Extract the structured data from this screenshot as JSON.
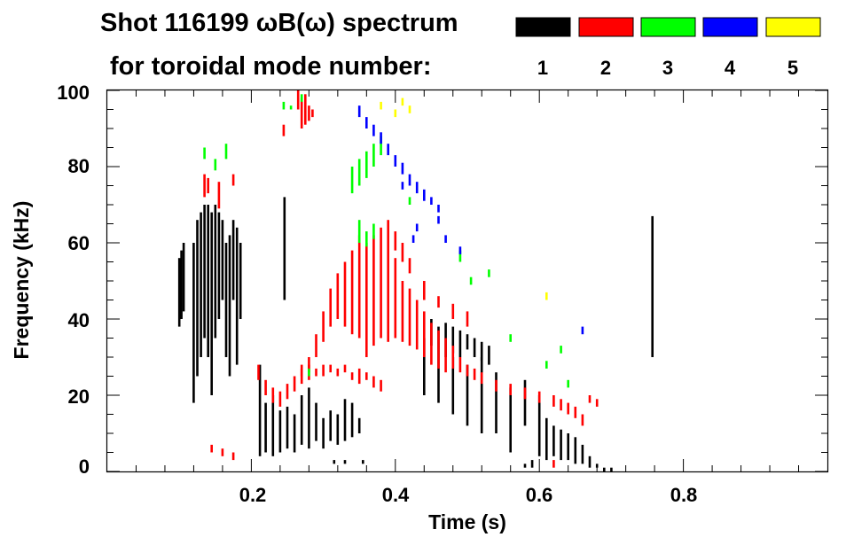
{
  "chart_data": {
    "type": "scatter",
    "title_line1": "Shot 116199 ωB(ω) spectrum",
    "title_line2": "for toroidal mode number:",
    "xlabel": "Time (s)",
    "ylabel": "Frequency (kHz)",
    "xlim": [
      0.0,
      1.0
    ],
    "ylim": [
      0,
      100
    ],
    "xticks": [
      0.2,
      0.4,
      0.6,
      0.8
    ],
    "xtick_labels": [
      "0.2",
      "0.4",
      "0.6",
      "0.8"
    ],
    "yticks": [
      0,
      20,
      40,
      60,
      80,
      100
    ],
    "ytick_labels": [
      "0",
      "20",
      "40",
      "60",
      "80",
      "100"
    ],
    "legend_position": "top-right",
    "legend": [
      {
        "label": "1",
        "color": "#000000"
      },
      {
        "label": "2",
        "color": "#ff0000"
      },
      {
        "label": "3",
        "color": "#00ff00"
      },
      {
        "label": "4",
        "color": "#0000ff"
      },
      {
        "label": "5",
        "color": "#ffff00"
      }
    ],
    "series": [
      {
        "name": "n=1",
        "color": "#000000",
        "points": [
          [
            0.1,
            38,
            56
          ],
          [
            0.103,
            40,
            58
          ],
          [
            0.106,
            42,
            60
          ],
          [
            0.12,
            18,
            60
          ],
          [
            0.125,
            25,
            66
          ],
          [
            0.13,
            30,
            68
          ],
          [
            0.135,
            35,
            70
          ],
          [
            0.14,
            30,
            70
          ],
          [
            0.145,
            20,
            68
          ],
          [
            0.15,
            35,
            70
          ],
          [
            0.155,
            40,
            68
          ],
          [
            0.16,
            45,
            66
          ],
          [
            0.165,
            30,
            60
          ],
          [
            0.17,
            25,
            62
          ],
          [
            0.175,
            45,
            66
          ],
          [
            0.18,
            28,
            64
          ],
          [
            0.185,
            40,
            60
          ],
          [
            0.212,
            4,
            28
          ],
          [
            0.22,
            5,
            18
          ],
          [
            0.23,
            4,
            20
          ],
          [
            0.24,
            5,
            16
          ],
          [
            0.25,
            6,
            17
          ],
          [
            0.26,
            5,
            15
          ],
          [
            0.27,
            7,
            20
          ],
          [
            0.28,
            6,
            22
          ],
          [
            0.29,
            8,
            18
          ],
          [
            0.3,
            6,
            14
          ],
          [
            0.31,
            8,
            16
          ],
          [
            0.32,
            7,
            15
          ],
          [
            0.33,
            8,
            19
          ],
          [
            0.34,
            9,
            18
          ],
          [
            0.35,
            10,
            14
          ],
          [
            0.246,
            45,
            72
          ],
          [
            0.315,
            2,
            3
          ],
          [
            0.33,
            2,
            3
          ],
          [
            0.355,
            2,
            3
          ],
          [
            0.45,
            33,
            40
          ],
          [
            0.46,
            32,
            38
          ],
          [
            0.47,
            30,
            39
          ],
          [
            0.48,
            31,
            38
          ],
          [
            0.49,
            30,
            37
          ],
          [
            0.5,
            32,
            36
          ],
          [
            0.51,
            30,
            35
          ],
          [
            0.52,
            29,
            34
          ],
          [
            0.53,
            28,
            33
          ],
          [
            0.44,
            20,
            35
          ],
          [
            0.46,
            18,
            32
          ],
          [
            0.48,
            15,
            30
          ],
          [
            0.5,
            12,
            28
          ],
          [
            0.52,
            10,
            30
          ],
          [
            0.54,
            10,
            26
          ],
          [
            0.56,
            5,
            22
          ],
          [
            0.58,
            12,
            24
          ],
          [
            0.6,
            4,
            20
          ],
          [
            0.61,
            3,
            14
          ],
          [
            0.62,
            4,
            12
          ],
          [
            0.63,
            3,
            11
          ],
          [
            0.64,
            3,
            10
          ],
          [
            0.65,
            2,
            9
          ],
          [
            0.66,
            2,
            7
          ],
          [
            0.67,
            1,
            4
          ],
          [
            0.68,
            1,
            2
          ],
          [
            0.69,
            0,
            1
          ],
          [
            0.7,
            0,
            1
          ],
          [
            0.58,
            1,
            2
          ],
          [
            0.59,
            1,
            3
          ],
          [
            0.757,
            30,
            67
          ]
        ]
      },
      {
        "name": "n=2",
        "color": "#ff0000",
        "points": [
          [
            0.135,
            72,
            78
          ],
          [
            0.14,
            73,
            77
          ],
          [
            0.155,
            69,
            76
          ],
          [
            0.175,
            75,
            78
          ],
          [
            0.145,
            5,
            7
          ],
          [
            0.16,
            4,
            6
          ],
          [
            0.175,
            3,
            5
          ],
          [
            0.265,
            95,
            100
          ],
          [
            0.27,
            90,
            98
          ],
          [
            0.275,
            91,
            99
          ],
          [
            0.28,
            92,
            96
          ],
          [
            0.285,
            93,
            95
          ],
          [
            0.245,
            88,
            91
          ],
          [
            0.21,
            24,
            28
          ],
          [
            0.22,
            20,
            24
          ],
          [
            0.23,
            18,
            22
          ],
          [
            0.24,
            17,
            21
          ],
          [
            0.25,
            19,
            23
          ],
          [
            0.26,
            21,
            25
          ],
          [
            0.27,
            23,
            27
          ],
          [
            0.28,
            26,
            30
          ],
          [
            0.27,
            25,
            28
          ],
          [
            0.28,
            24,
            28
          ],
          [
            0.29,
            25,
            27
          ],
          [
            0.3,
            25,
            28
          ],
          [
            0.31,
            26,
            28
          ],
          [
            0.32,
            25,
            27
          ],
          [
            0.33,
            26,
            28
          ],
          [
            0.34,
            24,
            26
          ],
          [
            0.35,
            23,
            27
          ],
          [
            0.36,
            24,
            26
          ],
          [
            0.37,
            22,
            25
          ],
          [
            0.38,
            21,
            24
          ],
          [
            0.29,
            30,
            36
          ],
          [
            0.3,
            34,
            42
          ],
          [
            0.31,
            38,
            48
          ],
          [
            0.32,
            40,
            52
          ],
          [
            0.33,
            38,
            55
          ],
          [
            0.34,
            36,
            58
          ],
          [
            0.35,
            35,
            62
          ],
          [
            0.36,
            30,
            60
          ],
          [
            0.37,
            33,
            62
          ],
          [
            0.38,
            35,
            64
          ],
          [
            0.39,
            34,
            60
          ],
          [
            0.4,
            35,
            56
          ],
          [
            0.41,
            34,
            50
          ],
          [
            0.42,
            33,
            48
          ],
          [
            0.43,
            32,
            45
          ],
          [
            0.44,
            30,
            42
          ],
          [
            0.45,
            28,
            39
          ],
          [
            0.46,
            27,
            37
          ],
          [
            0.47,
            26,
            35
          ],
          [
            0.48,
            27,
            33
          ],
          [
            0.49,
            26,
            30
          ],
          [
            0.5,
            25,
            28
          ],
          [
            0.51,
            24,
            27
          ],
          [
            0.52,
            23,
            26
          ],
          [
            0.54,
            21,
            24
          ],
          [
            0.56,
            20,
            23
          ],
          [
            0.58,
            19,
            22
          ],
          [
            0.6,
            18,
            21
          ],
          [
            0.62,
            17,
            20
          ],
          [
            0.63,
            16,
            19
          ],
          [
            0.64,
            15,
            18
          ],
          [
            0.65,
            14,
            17
          ],
          [
            0.66,
            12,
            15
          ],
          [
            0.67,
            18,
            20
          ],
          [
            0.68,
            17,
            19
          ],
          [
            0.62,
            1,
            3
          ],
          [
            0.39,
            60,
            66
          ],
          [
            0.4,
            58,
            63
          ],
          [
            0.41,
            55,
            60
          ],
          [
            0.42,
            52,
            56
          ],
          [
            0.44,
            45,
            50
          ],
          [
            0.46,
            43,
            46
          ],
          [
            0.48,
            40,
            44
          ],
          [
            0.5,
            38,
            42
          ]
        ]
      },
      {
        "name": "n=3",
        "color": "#00ff00",
        "points": [
          [
            0.135,
            82,
            85
          ],
          [
            0.15,
            79,
            82
          ],
          [
            0.165,
            82,
            86
          ],
          [
            0.245,
            95,
            97
          ],
          [
            0.255,
            95,
            96
          ],
          [
            0.27,
            97,
            99
          ],
          [
            0.34,
            73,
            80
          ],
          [
            0.35,
            75,
            82
          ],
          [
            0.36,
            77,
            84
          ],
          [
            0.37,
            80,
            86
          ],
          [
            0.38,
            83,
            88
          ],
          [
            0.35,
            60,
            66
          ],
          [
            0.36,
            59,
            63
          ],
          [
            0.37,
            61,
            65
          ],
          [
            0.42,
            70,
            72
          ],
          [
            0.49,
            55,
            58
          ],
          [
            0.505,
            49,
            51
          ],
          [
            0.53,
            51,
            53
          ],
          [
            0.56,
            34,
            36
          ],
          [
            0.61,
            27,
            29
          ],
          [
            0.63,
            31,
            33
          ],
          [
            0.64,
            22,
            24
          ],
          [
            0.28,
            25,
            27
          ]
        ]
      },
      {
        "name": "n=4",
        "color": "#0000ff",
        "points": [
          [
            0.35,
            93,
            96
          ],
          [
            0.36,
            90,
            93
          ],
          [
            0.37,
            88,
            91
          ],
          [
            0.38,
            86,
            89
          ],
          [
            0.39,
            83,
            86
          ],
          [
            0.4,
            80,
            83
          ],
          [
            0.41,
            78,
            81
          ],
          [
            0.42,
            75,
            78
          ],
          [
            0.43,
            73,
            76
          ],
          [
            0.44,
            71,
            74
          ],
          [
            0.45,
            70,
            72
          ],
          [
            0.46,
            68,
            70
          ],
          [
            0.41,
            74,
            76
          ],
          [
            0.43,
            63,
            65
          ],
          [
            0.46,
            65,
            67
          ],
          [
            0.47,
            60,
            62
          ],
          [
            0.49,
            57,
            59
          ],
          [
            0.425,
            60,
            62
          ],
          [
            0.66,
            36,
            38
          ]
        ]
      },
      {
        "name": "n=5",
        "color": "#ffff00",
        "points": [
          [
            0.38,
            95,
            97
          ],
          [
            0.4,
            93,
            95
          ],
          [
            0.41,
            96,
            98
          ],
          [
            0.42,
            94,
            96
          ],
          [
            0.61,
            45,
            47
          ]
        ]
      }
    ]
  }
}
